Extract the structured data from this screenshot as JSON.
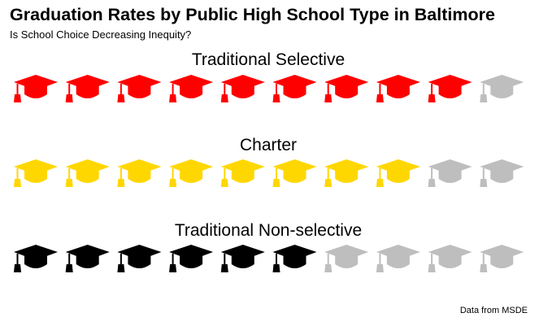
{
  "title": "Graduation Rates by Public High School Type in Baltimore",
  "subtitle": "Is School Choice Decreasing Inequity?",
  "caption": "Data from MSDE",
  "icon_name": "graduation-cap-icon",
  "chart_data": {
    "type": "waffle",
    "units_per_row": 10,
    "empty_color": "#bebebe",
    "series": [
      {
        "name": "Traditional Selective",
        "value": 9,
        "color": "#ff0000"
      },
      {
        "name": "Charter",
        "value": 8,
        "color": "#ffd700"
      },
      {
        "name": "Traditional Non-selective",
        "value": 6,
        "color": "#000000"
      }
    ]
  }
}
